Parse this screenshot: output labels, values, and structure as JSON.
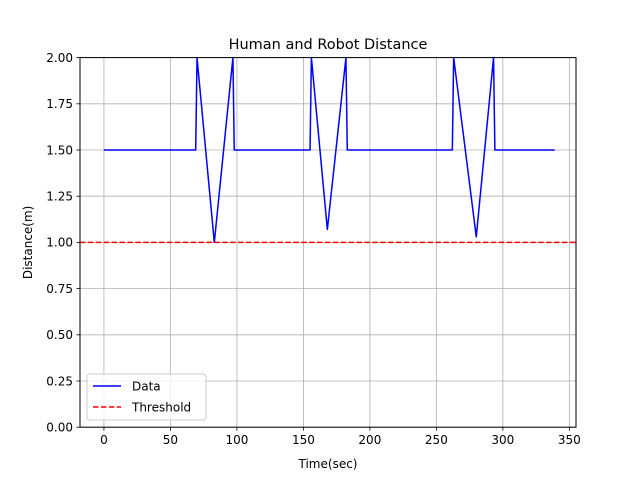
{
  "chart_data": {
    "type": "line",
    "title": "Human and Robot Distance",
    "xlabel": "Time(sec)",
    "ylabel": "Distance(m)",
    "xlim": [
      -18,
      355
    ],
    "ylim": [
      0.0,
      2.0
    ],
    "xticks": [
      0,
      50,
      100,
      150,
      200,
      250,
      300,
      350
    ],
    "xtick_labels": [
      "0",
      "50",
      "100",
      "150",
      "200",
      "250",
      "300",
      "350"
    ],
    "yticks": [
      0.0,
      0.25,
      0.5,
      0.75,
      1.0,
      1.25,
      1.5,
      1.75,
      2.0
    ],
    "ytick_labels": [
      "0.00",
      "0.25",
      "0.50",
      "0.75",
      "1.00",
      "1.25",
      "1.50",
      "1.75",
      "2.00"
    ],
    "grid": true,
    "legend_position": "lower-left",
    "series": [
      {
        "name": "Data",
        "color": "#0000ff",
        "style": "solid",
        "x": [
          0,
          69,
          70,
          83,
          97,
          98,
          155,
          156,
          168,
          182,
          183,
          262,
          263,
          280,
          293,
          294,
          339
        ],
        "y": [
          1.5,
          1.5,
          2.0,
          1.0,
          2.0,
          1.5,
          1.5,
          2.0,
          1.07,
          2.0,
          1.5,
          1.5,
          2.0,
          1.03,
          2.0,
          1.5,
          1.5
        ]
      },
      {
        "name": "Threshold",
        "color": "#ff0000",
        "style": "dashed",
        "x": [
          -18,
          355
        ],
        "y": [
          1.0,
          1.0
        ]
      }
    ]
  }
}
